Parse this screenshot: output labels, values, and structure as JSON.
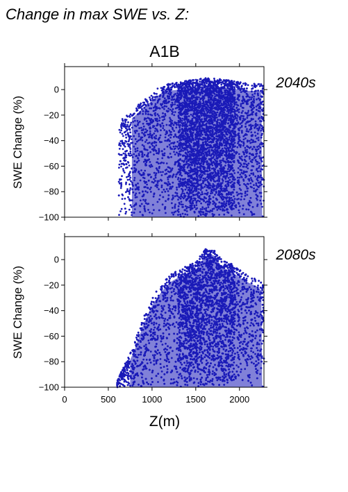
{
  "figure": {
    "title": "Change in max SWE vs. Z:",
    "scenario": "A1B",
    "xlabel": "Z(m)"
  },
  "colors": {
    "points": "#1a1ab8",
    "period_label": "#2b2bb0"
  },
  "chart_data": [
    {
      "type": "scatter",
      "period": "2040s",
      "ylabel": "SWE Change (%)",
      "xlim": [
        0,
        2280
      ],
      "ylim": [
        -100,
        18
      ],
      "xticks": [
        0,
        500,
        1000,
        1500,
        2000
      ],
      "yticks": [
        0,
        -20,
        -40,
        -60,
        -80,
        -100
      ],
      "x_tick_labels_shown": false,
      "grid": false,
      "envelope": {
        "x": [
          620,
          700,
          800,
          900,
          1000,
          1100,
          1200,
          1300,
          1400,
          1500,
          1600,
          1700,
          1800,
          1900,
          2000,
          2100,
          2200,
          2280
        ],
        "y_max": [
          -25,
          -20,
          -15,
          -8,
          -3,
          3,
          5,
          6,
          7,
          8,
          9,
          9,
          8,
          7,
          6,
          5,
          5,
          4
        ],
        "y_min": [
          -100,
          -100,
          -100,
          -100,
          -100,
          -100,
          -100,
          -100,
          -100,
          -100,
          -100,
          -100,
          -100,
          -100,
          -100,
          -100,
          -100,
          -100
        ]
      }
    },
    {
      "type": "scatter",
      "period": "2080s",
      "ylabel": "SWE Change (%)",
      "xlim": [
        0,
        2280
      ],
      "ylim": [
        -100,
        18
      ],
      "xticks": [
        0,
        500,
        1000,
        1500,
        2000
      ],
      "yticks": [
        0,
        -20,
        -40,
        -60,
        -80,
        -100
      ],
      "x_tick_labels": [
        "0",
        "500",
        "1000",
        "1500",
        "2000"
      ],
      "grid": false,
      "envelope": {
        "x": [
          600,
          700,
          800,
          900,
          1000,
          1100,
          1200,
          1300,
          1400,
          1500,
          1600,
          1700,
          1800,
          1900,
          2000,
          2100,
          2200,
          2280
        ],
        "y_max": [
          -95,
          -80,
          -65,
          -45,
          -30,
          -20,
          -12,
          -8,
          -5,
          -2,
          8,
          10,
          0,
          -3,
          -8,
          -12,
          -15,
          -20
        ],
        "y_min": [
          -100,
          -100,
          -100,
          -100,
          -100,
          -100,
          -100,
          -100,
          -100,
          -100,
          -100,
          -100,
          -100,
          -100,
          -100,
          -100,
          -100,
          -100
        ]
      }
    }
  ]
}
